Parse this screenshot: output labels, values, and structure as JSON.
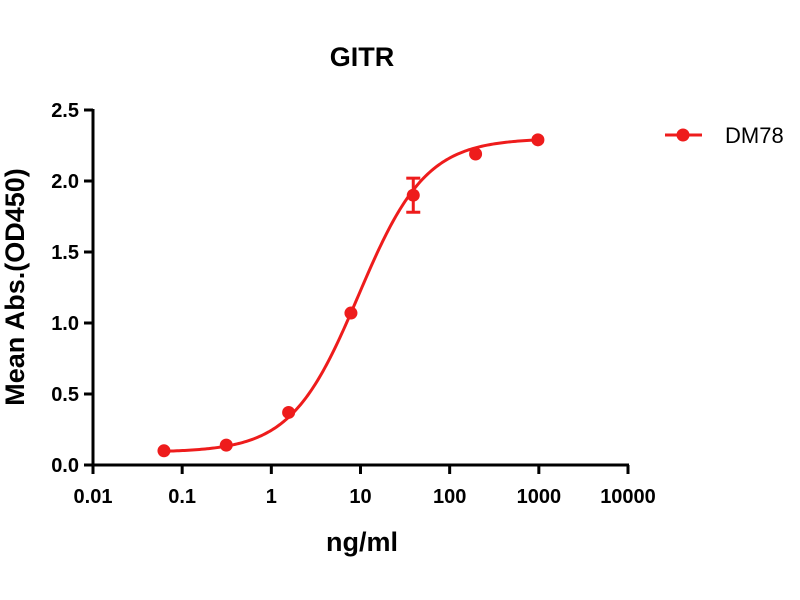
{
  "chart_data": {
    "type": "line",
    "title": "GITR",
    "xlabel": "ng/ml",
    "ylabel": "Mean Abs.(OD450)",
    "xscale": "log",
    "xlim": [
      0.01,
      10000
    ],
    "ylim": [
      0,
      2.5
    ],
    "x_ticks": [
      0.01,
      0.1,
      1,
      10,
      100,
      1000,
      10000
    ],
    "x_tick_labels": [
      "0.01",
      "0.1",
      "1",
      "10",
      "100",
      "1000",
      "10000"
    ],
    "y_ticks": [
      0,
      0.5,
      1.0,
      1.5,
      2.0,
      2.5
    ],
    "y_tick_labels": [
      "0.0",
      "0.5",
      "1.0",
      "1.5",
      "2.0",
      "2.5"
    ],
    "grid": false,
    "legend_position": "top-right",
    "series": [
      {
        "name": "DM78",
        "color": "#ee1c1c",
        "x": [
          0.0625,
          0.3125,
          1.5625,
          7.8125,
          39.0625,
          195.3125,
          976.5625
        ],
        "y": [
          0.1,
          0.14,
          0.37,
          1.07,
          1.9,
          2.19,
          2.29
        ],
        "error": [
          0,
          0,
          0,
          0,
          0.12,
          0,
          0
        ],
        "fit": {
          "model": "4PL",
          "bottom": 0.09,
          "top": 2.3,
          "ec50": 9.5,
          "hill": 1.15
        }
      }
    ]
  }
}
